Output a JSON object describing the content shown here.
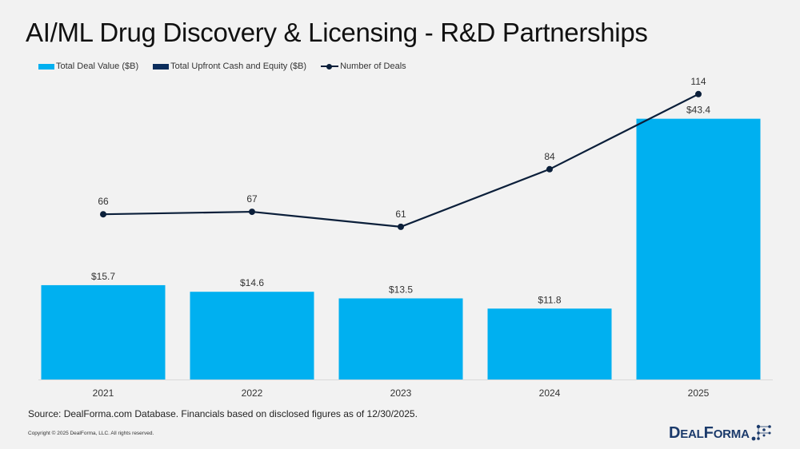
{
  "title": "AI/ML Drug Discovery & Licensing - R&D Partnerships",
  "legend": [
    {
      "label": "Total Deal Value ($B)",
      "color": "#00b0f0",
      "kind": "bar"
    },
    {
      "label": "Total Upfront Cash and Equity ($B)",
      "color": "#0b2d5c",
      "kind": "bar"
    },
    {
      "label": "Number of Deals",
      "color": "#0b1f3a",
      "kind": "line"
    }
  ],
  "chart_data": {
    "type": "bar",
    "title": "AI/ML Drug Discovery & Licensing - R&D Partnerships",
    "categories": [
      "2021",
      "2022",
      "2023",
      "2024",
      "2025"
    ],
    "series": [
      {
        "name": "Total Deal Value ($B)",
        "type": "bar",
        "axis": "left",
        "values": [
          15.7,
          14.6,
          13.5,
          11.8,
          43.4
        ],
        "labels": [
          "$15.7",
          "$14.6",
          "$13.5",
          "$11.8",
          "$43.4"
        ],
        "color": "#00b0f0"
      },
      {
        "name": "Total Upfront Cash and Equity ($B)",
        "type": "bar",
        "axis": "left",
        "values": [],
        "labels": [],
        "color": "#0b2d5c"
      },
      {
        "name": "Number of Deals",
        "type": "line",
        "axis": "right",
        "values": [
          66,
          67,
          61,
          84,
          114
        ],
        "labels": [
          "66",
          "67",
          "61",
          "84",
          "114"
        ],
        "color": "#0b1f3a"
      }
    ],
    "ylim_left": [
      0,
      50
    ],
    "ylim_right": [
      0,
      120
    ],
    "xlabel": "",
    "ylabel": "",
    "grid": false,
    "legend_position": "top-left"
  },
  "footer": {
    "source": "Source: DealForma.com Database. Financials based on disclosed figures as of 12/30/2025.",
    "copyright": "Copyright © 2025 DealForma, LLC. All rights reserved.",
    "logo_text_big1": "D",
    "logo_text_small1": "EAL",
    "logo_text_big2": "F",
    "logo_text_small2": "ORMA"
  }
}
